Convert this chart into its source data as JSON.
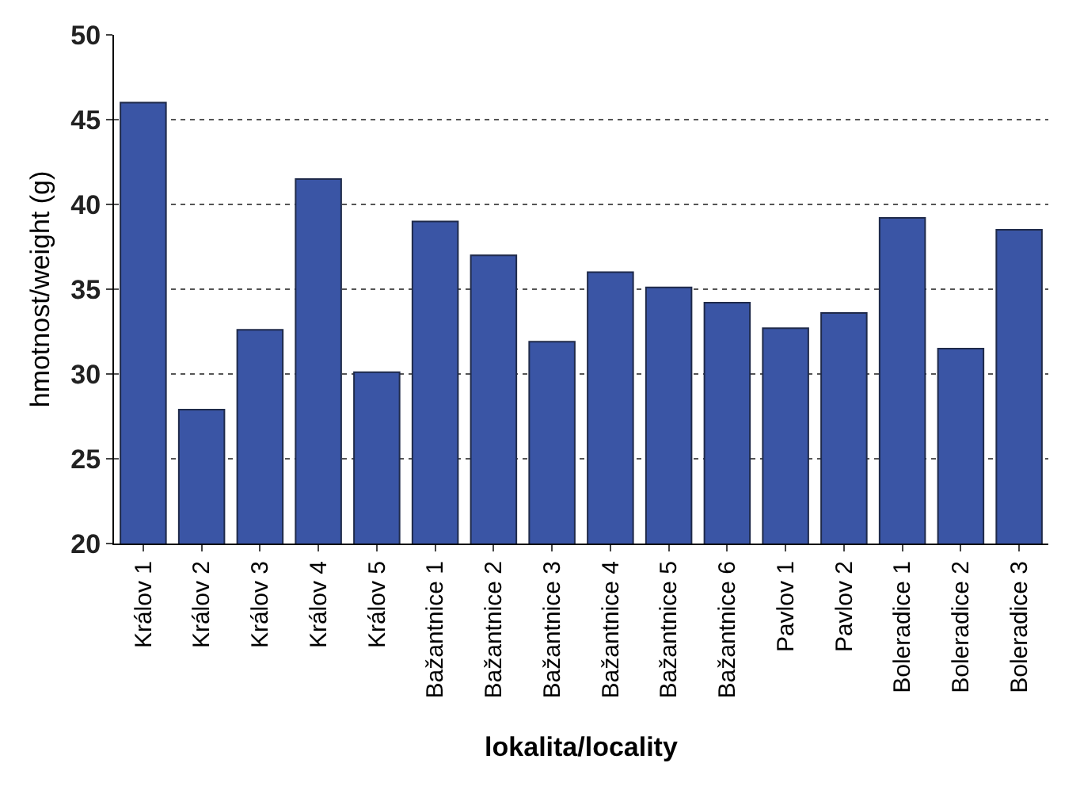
{
  "chart_data": {
    "type": "bar",
    "xlabel": "lokalita/locality",
    "ylabel": "hmotnost/weight (g)",
    "categories": [
      "Králov 1",
      "Králov 2",
      "Králov 3",
      "Králov 4",
      "Králov 5",
      "Bažantnice 1",
      "Bažantnice 2",
      "Bažantnice 3",
      "Bažantnice 4",
      "Bažantnice 5",
      "Bažantnice 6",
      "Pavlov 1",
      "Pavlov 2",
      "Boleradice 1",
      "Boleradice 2",
      "Boleradice 3"
    ],
    "values": [
      46.0,
      27.9,
      32.6,
      41.5,
      30.1,
      39.0,
      37.0,
      31.9,
      36.0,
      35.1,
      34.2,
      32.7,
      33.6,
      39.2,
      31.5,
      38.5
    ],
    "color": "#3a55a5",
    "ylim": [
      20,
      50
    ],
    "yticks": [
      20,
      25,
      30,
      35,
      40,
      45,
      50
    ],
    "grid": "y",
    "legend": false
  }
}
